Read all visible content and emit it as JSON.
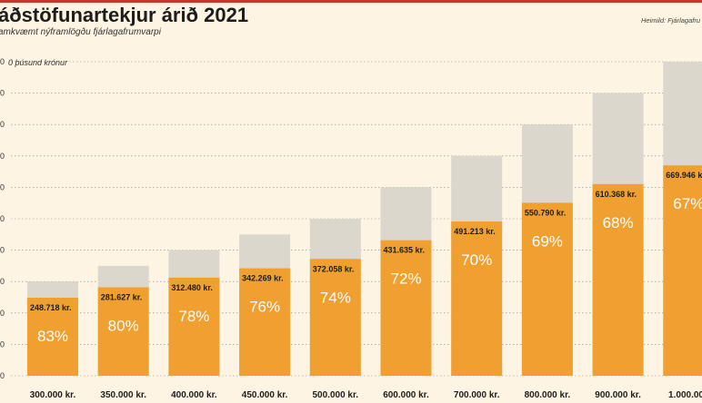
{
  "header": {
    "title": "áðstöfunartekjur árið 2021",
    "subtitle": "amkvæmt nýframlögðu fjárlagafrumvarpi",
    "source": "Heimild: Fjárlagafru"
  },
  "chart_data": {
    "type": "bar",
    "unit_label": "0 þúsund krónur",
    "y_tick_labels": [
      "0",
      "0",
      "0",
      "0",
      "0",
      "0",
      "0",
      "0",
      "0",
      "0",
      "0"
    ],
    "ylim": [
      0,
      1000000
    ],
    "grid": true,
    "categories": [
      "300.000 kr.",
      "350.000 kr.",
      "400.000 kr.",
      "450.000 kr.",
      "500.000 kr.",
      "600.000 kr.",
      "700.000 kr.",
      "800.000 kr.",
      "900.000 kr.",
      "1.000.000"
    ],
    "totals": [
      300000,
      350000,
      400000,
      450000,
      500000,
      600000,
      700000,
      800000,
      900000,
      1000000
    ],
    "values": [
      248718,
      281627,
      312480,
      342269,
      372058,
      431635,
      491213,
      550790,
      610368,
      669946
    ],
    "value_labels": [
      "248.718 kr.",
      "281.627 kr.",
      "312.480 kr.",
      "342.269 kr.",
      "372.058 kr.",
      "431.635 kr.",
      "491.213 kr.",
      "550.790 kr.",
      "610.368 kr.",
      "669.946 k"
    ],
    "percent_labels": [
      "83%",
      "80%",
      "78%",
      "76%",
      "74%",
      "72%",
      "70%",
      "69%",
      "68%",
      "67%"
    ],
    "colors": {
      "total": "#dcd7cc",
      "value": "#f0a030",
      "grid": "#888888"
    }
  }
}
